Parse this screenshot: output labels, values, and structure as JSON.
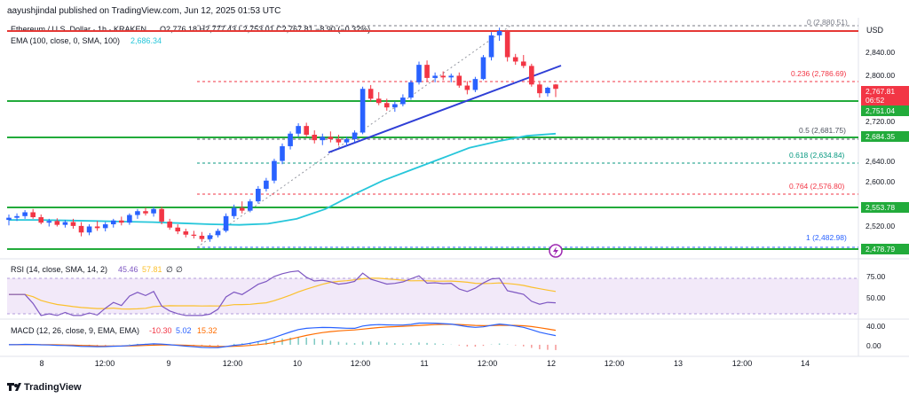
{
  "header": {
    "published": "aayushjindal published on TradingView.com, Jun 12, 2025 01:53 UTC",
    "symbol": "Ethereum / U.S. Dollar · 1h · KRAKEN",
    "ohlc": "O2,776.18 H2,777.43 L2,753.01 C2,767.81 −8.90 (−0.32%)",
    "ema_label": "EMA (100, close, 0, SMA, 100)",
    "ema_value": "2,686.34"
  },
  "axis": {
    "currency": "USD",
    "ticks": [
      "2,840.00",
      "2,800.00",
      "2,720.00",
      "2,640.00",
      "2,600.00",
      "2,520.00"
    ],
    "x_ticks": [
      "8",
      "12:00",
      "9",
      "12:00",
      "10",
      "12:00",
      "11",
      "12:00",
      "12",
      "12:00",
      "13",
      "12:00",
      "14"
    ]
  },
  "fib": [
    {
      "label": "0 (2,880.51)",
      "color": "#787b86"
    },
    {
      "label": "0.236 (2,786.69)",
      "color": "#f23645"
    },
    {
      "label": "0.5 (2,681.75)",
      "color": "#4c525e"
    },
    {
      "label": "0.618 (2,634.84)",
      "color": "#089981"
    },
    {
      "label": "0.764 (2,576.80)",
      "color": "#f23645"
    },
    {
      "label": "1 (2,482.98)",
      "color": "#2962ff"
    }
  ],
  "price_tags": [
    {
      "value": "2,767.81",
      "sub": "06:52",
      "color": "#f23645"
    },
    {
      "value": "2,751.04",
      "color": "#22ab3b"
    },
    {
      "value": "2,684.35",
      "color": "#22ab3b"
    },
    {
      "value": "2,553.78",
      "color": "#22ab3b"
    },
    {
      "value": "2,478.79",
      "color": "#22ab3b"
    }
  ],
  "rsi": {
    "label": "RSI (14, close, SMA, 14, 2)",
    "v1": "45.46",
    "v2": "57.81",
    "v3": "∅",
    "v4": "∅",
    "ticks": [
      "75.00",
      "50.00"
    ]
  },
  "macd": {
    "label": "MACD (12, 26, close, 9, EMA, EMA)",
    "v1": "-10.30",
    "v2": "5.02",
    "v3": "15.32",
    "ticks": [
      "40.00",
      "0.00"
    ]
  },
  "footer": {
    "brand": "TradingView"
  },
  "colors": {
    "up": "#2962ff",
    "down": "#f23645",
    "ema": "#26c6da",
    "support": "#22ab3b",
    "resistance": "#e53935",
    "trendline": "#2f3fd6",
    "rsi_line": "#7e57c2",
    "rsi_sma": "#fbc02d",
    "macd_line": "#2962ff",
    "signal_line": "#ff6d00"
  },
  "chart_data": {
    "type": "candlestick",
    "title": "Ethereum / U.S. Dollar · 1h · KRAKEN",
    "ylim": [
      2460,
      2895
    ],
    "x_start": "8 Jun",
    "x_end": "14 Jun",
    "candles": [
      [
        2528,
        2538,
        2518,
        2532
      ],
      [
        2532,
        2540,
        2526,
        2535
      ],
      [
        2535,
        2546,
        2530,
        2542
      ],
      [
        2542,
        2548,
        2530,
        2533
      ],
      [
        2533,
        2538,
        2520,
        2523
      ],
      [
        2523,
        2530,
        2516,
        2526
      ],
      [
        2526,
        2531,
        2516,
        2519
      ],
      [
        2519,
        2528,
        2514,
        2524
      ],
      [
        2524,
        2530,
        2512,
        2517
      ],
      [
        2517,
        2524,
        2498,
        2505
      ],
      [
        2505,
        2520,
        2500,
        2516
      ],
      [
        2516,
        2526,
        2508,
        2513
      ],
      [
        2513,
        2524,
        2507,
        2520
      ],
      [
        2520,
        2530,
        2514,
        2527
      ],
      [
        2527,
        2534,
        2518,
        2523
      ],
      [
        2523,
        2540,
        2519,
        2537
      ],
      [
        2537,
        2548,
        2530,
        2544
      ],
      [
        2544,
        2550,
        2536,
        2540
      ],
      [
        2540,
        2552,
        2534,
        2548
      ],
      [
        2548,
        2552,
        2520,
        2525
      ],
      [
        2525,
        2530,
        2510,
        2514
      ],
      [
        2514,
        2520,
        2502,
        2507
      ],
      [
        2507,
        2512,
        2496,
        2501
      ],
      [
        2501,
        2508,
        2494,
        2499
      ],
      [
        2499,
        2506,
        2488,
        2493
      ],
      [
        2493,
        2504,
        2488,
        2500
      ],
      [
        2500,
        2512,
        2496,
        2508
      ],
      [
        2508,
        2540,
        2505,
        2535
      ],
      [
        2535,
        2556,
        2530,
        2550
      ],
      [
        2550,
        2562,
        2540,
        2545
      ],
      [
        2545,
        2566,
        2542,
        2562
      ],
      [
        2562,
        2590,
        2558,
        2585
      ],
      [
        2585,
        2605,
        2580,
        2600
      ],
      [
        2600,
        2640,
        2595,
        2636
      ],
      [
        2636,
        2668,
        2630,
        2663
      ],
      [
        2663,
        2690,
        2657,
        2686
      ],
      [
        2686,
        2705,
        2680,
        2700
      ],
      [
        2700,
        2706,
        2680,
        2684
      ],
      [
        2684,
        2692,
        2668,
        2674
      ],
      [
        2674,
        2686,
        2665,
        2680
      ],
      [
        2680,
        2690,
        2670,
        2676
      ],
      [
        2676,
        2684,
        2664,
        2670
      ],
      [
        2670,
        2680,
        2662,
        2676
      ],
      [
        2676,
        2692,
        2670,
        2688
      ],
      [
        2688,
        2772,
        2685,
        2768
      ],
      [
        2768,
        2775,
        2745,
        2750
      ],
      [
        2750,
        2762,
        2738,
        2742
      ],
      [
        2742,
        2750,
        2728,
        2734
      ],
      [
        2734,
        2745,
        2726,
        2740
      ],
      [
        2740,
        2758,
        2736,
        2752
      ],
      [
        2752,
        2784,
        2748,
        2780
      ],
      [
        2780,
        2818,
        2776,
        2812
      ],
      [
        2812,
        2820,
        2782,
        2788
      ],
      [
        2788,
        2798,
        2780,
        2792
      ],
      [
        2792,
        2800,
        2784,
        2789
      ],
      [
        2789,
        2796,
        2780,
        2792
      ],
      [
        2792,
        2798,
        2770,
        2774
      ],
      [
        2774,
        2782,
        2758,
        2766
      ],
      [
        2766,
        2790,
        2762,
        2786
      ],
      [
        2786,
        2830,
        2784,
        2826
      ],
      [
        2826,
        2872,
        2820,
        2866
      ],
      [
        2866,
        2880,
        2856,
        2874
      ],
      [
        2874,
        2876,
        2818,
        2826
      ],
      [
        2826,
        2832,
        2812,
        2818
      ],
      [
        2818,
        2830,
        2806,
        2810
      ],
      [
        2810,
        2814,
        2772,
        2776
      ],
      [
        2776,
        2780,
        2752,
        2760
      ],
      [
        2760,
        2772,
        2754,
        2770
      ],
      [
        2776,
        2777,
        2753,
        2768
      ]
    ],
    "ema": [
      2528,
      2528,
      2527,
      2526,
      2525,
      2524,
      2522,
      2520,
      2519,
      2521,
      2530,
      2548,
      2575,
      2600,
      2620,
      2640,
      2660,
      2672,
      2682,
      2686
    ],
    "rsi_pane": {
      "ylim": [
        35,
        95
      ],
      "levels": [
        70,
        30
      ]
    },
    "macd_pane": {
      "ylim": [
        -20,
        55
      ]
    }
  }
}
